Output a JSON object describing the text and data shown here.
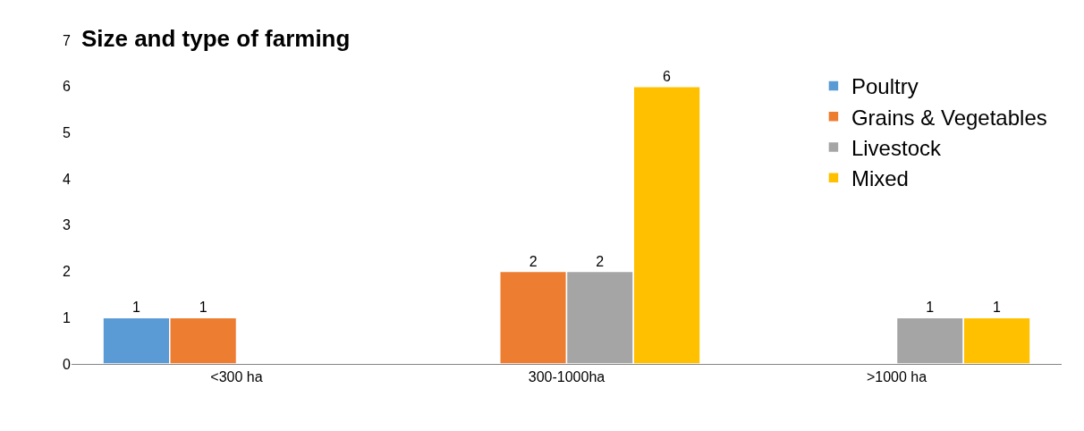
{
  "chart_data": {
    "type": "bar",
    "title": "Size and type of farming",
    "categories": [
      "<300 ha",
      "300-1000ha",
      ">1000 ha"
    ],
    "series": [
      {
        "name": "Poultry",
        "color": "#5b9bd5",
        "values": [
          1,
          null,
          null
        ]
      },
      {
        "name": "Grains & Vegetables",
        "color": "#ed7d31",
        "values": [
          1,
          2,
          null
        ]
      },
      {
        "name": "Livestock",
        "color": "#a5a5a5",
        "values": [
          null,
          2,
          1
        ]
      },
      {
        "name": "Mixed",
        "color": "#ffc000",
        "values": [
          null,
          6,
          1
        ]
      }
    ],
    "ylim": [
      0,
      7
    ],
    "yticks": [
      0,
      1,
      2,
      3,
      4,
      5,
      6,
      7
    ],
    "legend": "top right",
    "data_labels": true
  }
}
